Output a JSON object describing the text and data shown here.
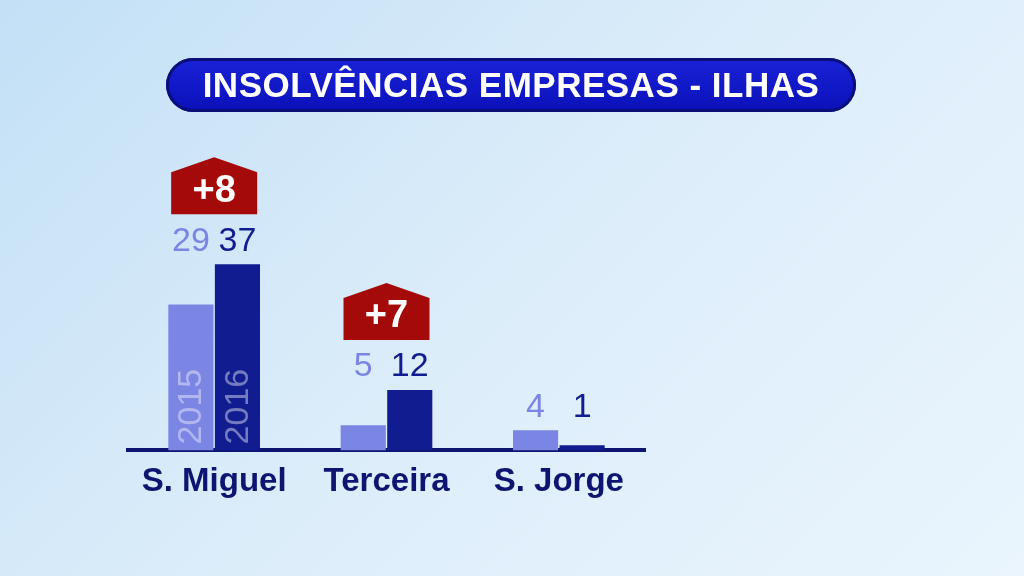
{
  "chart_data": {
    "type": "bar",
    "title": "INSOLVÊNCIAS EMPRESAS - ILHAS",
    "categories": [
      "S. Miguel",
      "Terceira",
      "S. Jorge"
    ],
    "series": [
      {
        "name": "2015",
        "color": "#7b85e4",
        "values": [
          29,
          5,
          4
        ]
      },
      {
        "name": "2016",
        "color": "#101c8f",
        "values": [
          37,
          12,
          1
        ]
      }
    ],
    "data_labels": true,
    "annotations": [
      {
        "text": "+8",
        "x": "S. Miguel",
        "y": 37
      },
      {
        "text": "+7",
        "x": "Terceira",
        "y": 12
      }
    ],
    "grid": false,
    "legend": false
  }
}
